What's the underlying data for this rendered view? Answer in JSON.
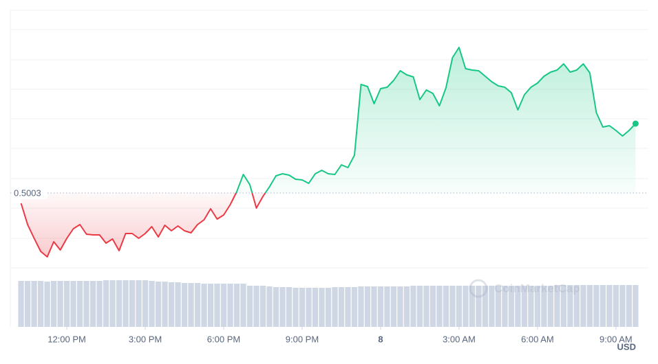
{
  "chart_data": {
    "type": "line",
    "baseline": 0.5003,
    "currency": "USD",
    "watermark": "CoinMarketCap",
    "up_color": "#16c784",
    "down_color": "#ea3943",
    "xlim": [
      9.84,
      34.24
    ],
    "ylim": [
      0.4894,
      0.5269
    ],
    "xticks": [
      {
        "value": 12,
        "label": "12:00 PM"
      },
      {
        "value": 15,
        "label": "3:00 PM"
      },
      {
        "value": 18,
        "label": "6:00 PM"
      },
      {
        "value": 21,
        "label": "9:00 PM"
      },
      {
        "value": 24,
        "label": "8"
      },
      {
        "value": 27,
        "label": "3:00 AM"
      },
      {
        "value": 30,
        "label": "6:00 AM"
      },
      {
        "value": 33,
        "label": "9:00 AM"
      }
    ],
    "x": [
      10.25,
      10.5,
      10.75,
      11.0,
      11.25,
      11.5,
      11.75,
      12.0,
      12.25,
      12.5,
      12.75,
      13.0,
      13.25,
      13.5,
      13.75,
      14.0,
      14.25,
      14.5,
      14.75,
      15.0,
      15.25,
      15.5,
      15.75,
      16.0,
      16.25,
      16.5,
      16.75,
      17.0,
      17.25,
      17.5,
      17.75,
      18.0,
      18.25,
      18.5,
      18.75,
      19.0,
      19.25,
      19.5,
      19.75,
      20.0,
      20.25,
      20.5,
      20.75,
      21.0,
      21.25,
      21.5,
      21.75,
      22.0,
      22.25,
      22.5,
      22.75,
      23.0,
      23.25,
      23.5,
      23.75,
      24.0,
      24.25,
      24.5,
      24.75,
      25.0,
      25.25,
      25.5,
      25.75,
      26.0,
      26.25,
      26.5,
      26.75,
      27.0,
      27.25,
      27.5,
      27.75,
      28.0,
      28.25,
      28.5,
      28.75,
      29.0,
      29.25,
      29.5,
      29.75,
      30.0,
      30.25,
      30.5,
      30.75,
      31.0,
      31.25,
      31.5,
      31.75,
      32.0,
      32.25,
      32.5,
      32.75,
      33.0,
      33.25,
      33.5,
      33.75
    ],
    "values": [
      0.4988,
      0.4957,
      0.4937,
      0.4918,
      0.491,
      0.4932,
      0.492,
      0.4937,
      0.4951,
      0.4957,
      0.4943,
      0.4942,
      0.4942,
      0.493,
      0.4936,
      0.4919,
      0.4944,
      0.4944,
      0.4937,
      0.4944,
      0.4954,
      0.4939,
      0.4956,
      0.4948,
      0.4955,
      0.4948,
      0.4945,
      0.4957,
      0.4964,
      0.498,
      0.4965,
      0.4971,
      0.4986,
      0.5005,
      0.503,
      0.5015,
      0.4981,
      0.4998,
      0.5012,
      0.5028,
      0.5031,
      0.5029,
      0.5023,
      0.5022,
      0.5017,
      0.5031,
      0.5036,
      0.5031,
      0.503,
      0.5044,
      0.504,
      0.5058,
      0.5161,
      0.5158,
      0.5133,
      0.5155,
      0.5157,
      0.5167,
      0.5181,
      0.5175,
      0.5172,
      0.5139,
      0.5153,
      0.5148,
      0.513,
      0.5156,
      0.52,
      0.5215,
      0.5184,
      0.5182,
      0.5181,
      0.5173,
      0.5165,
      0.5159,
      0.5157,
      0.5149,
      0.5124,
      0.5146,
      0.5157,
      0.5163,
      0.5173,
      0.5179,
      0.5182,
      0.5191,
      0.5179,
      0.5182,
      0.5191,
      0.5178,
      0.512,
      0.5099,
      0.5101,
      0.5094,
      0.5086,
      0.5094,
      0.5104
    ],
    "volume": {
      "color": "#cfd6e4",
      "ylim": [
        0,
        86
      ],
      "values": [
        67,
        67,
        67,
        67,
        66,
        67,
        67,
        67,
        67,
        67,
        67,
        67,
        67,
        68,
        68,
        68,
        68,
        68,
        68,
        68,
        67,
        66,
        66,
        65,
        65,
        64,
        64,
        64,
        63,
        63,
        63,
        63,
        63,
        63,
        63,
        60,
        60,
        60,
        59,
        58,
        58,
        58,
        57,
        57,
        57,
        57,
        57,
        57,
        58,
        58,
        58,
        58,
        59,
        59,
        59,
        59,
        59,
        59,
        59,
        59,
        60,
        60,
        60,
        60,
        60,
        60,
        60,
        60,
        60,
        60,
        60,
        60,
        60,
        60,
        60,
        60,
        60,
        60,
        60,
        60,
        60,
        60,
        61,
        61,
        61,
        61,
        61,
        61,
        61,
        61,
        61,
        61,
        61,
        61,
        61
      ]
    }
  }
}
